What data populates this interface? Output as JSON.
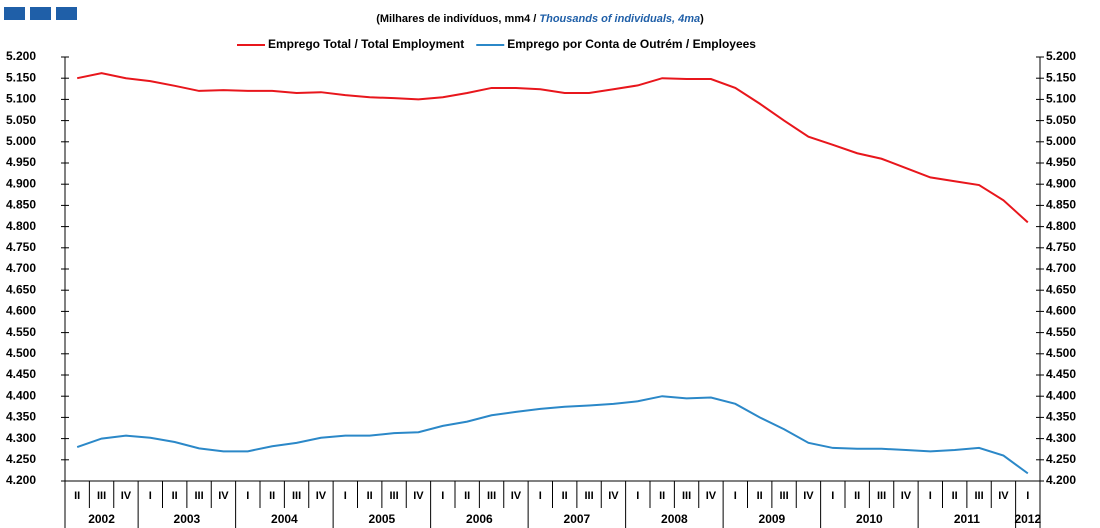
{
  "chart_data": {
    "type": "line",
    "subtitle": [
      "(Milhares de indivíduos, mm4 / ",
      "Thousands of individuals, 4ma",
      ")"
    ],
    "categories": [
      "II",
      "III",
      "IV",
      "I",
      "II",
      "III",
      "IV",
      "I",
      "II",
      "III",
      "IV",
      "I",
      "II",
      "III",
      "IV",
      "I",
      "II",
      "III",
      "IV",
      "I",
      "II",
      "III",
      "IV",
      "I",
      "II",
      "III",
      "IV",
      "I",
      "II",
      "III",
      "IV",
      "I",
      "II",
      "III",
      "IV",
      "I",
      "II",
      "III",
      "IV",
      "I"
    ],
    "years": [
      "2002",
      "2003",
      "2004",
      "2005",
      "2006",
      "2007",
      "2008",
      "2009",
      "2010",
      "2011",
      "2012"
    ],
    "series": [
      {
        "name": "Emprego Total / Total Employment",
        "color": "#e8161c",
        "values": [
          5150,
          5162,
          5150,
          5143,
          5132,
          5120,
          5122,
          5120,
          5120,
          5115,
          5117,
          5110,
          5105,
          5103,
          5100,
          5105,
          5115,
          5127,
          5127,
          5124,
          5115,
          5115,
          5124,
          5133,
          5150,
          5148,
          5148,
          5127,
          5090,
          5050,
          5012,
          4993,
          4973,
          4960,
          4938,
          4916,
          4907,
          4898,
          4862,
          4810
        ]
      },
      {
        "name": "Emprego por Conta de Outrém / Employees",
        "color": "#2b88c8",
        "values": [
          4280,
          4300,
          4307,
          4302,
          4292,
          4277,
          4270,
          4270,
          4282,
          4290,
          4302,
          4307,
          4307,
          4313,
          4315,
          4330,
          4340,
          4355,
          4363,
          4370,
          4375,
          4378,
          4382,
          4388,
          4400,
          4395,
          4397,
          4382,
          4350,
          4322,
          4290,
          4278,
          4276,
          4276,
          4273,
          4270,
          4273,
          4278,
          4260,
          4218
        ]
      }
    ],
    "ylim": [
      4200,
      5200
    ],
    "yticks": [
      {
        "value": 4200,
        "label": "4.200"
      },
      {
        "value": 4250,
        "label": "4.250"
      },
      {
        "value": 4300,
        "label": "4.300"
      },
      {
        "value": 4350,
        "label": "4.350"
      },
      {
        "value": 4400,
        "label": "4.400"
      },
      {
        "value": 4450,
        "label": "4.450"
      },
      {
        "value": 4500,
        "label": "4.500"
      },
      {
        "value": 4550,
        "label": "4.550"
      },
      {
        "value": 4600,
        "label": "4.600"
      },
      {
        "value": 4650,
        "label": "4.650"
      },
      {
        "value": 4700,
        "label": "4.700"
      },
      {
        "value": 4750,
        "label": "4.750"
      },
      {
        "value": 4800,
        "label": "4.800"
      },
      {
        "value": 4850,
        "label": "4.850"
      },
      {
        "value": 4900,
        "label": "4.900"
      },
      {
        "value": 4950,
        "label": "4.950"
      },
      {
        "value": 5000,
        "label": "5.000"
      },
      {
        "value": 5050,
        "label": "5.050"
      },
      {
        "value": 5100,
        "label": "5.100"
      },
      {
        "value": 5150,
        "label": "5.150"
      },
      {
        "value": 5200,
        "label": "5.200"
      }
    ],
    "right_axis": true,
    "grid": false
  }
}
